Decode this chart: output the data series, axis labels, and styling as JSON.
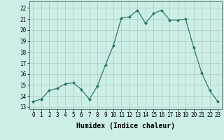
{
  "x": [
    0,
    1,
    2,
    3,
    4,
    5,
    6,
    7,
    8,
    9,
    10,
    11,
    12,
    13,
    14,
    15,
    16,
    17,
    18,
    19,
    20,
    21,
    22,
    23
  ],
  "y": [
    13.5,
    13.7,
    14.5,
    14.7,
    15.1,
    15.2,
    14.6,
    13.7,
    14.9,
    16.8,
    18.6,
    21.1,
    21.2,
    21.8,
    20.6,
    21.5,
    21.8,
    20.9,
    20.9,
    21.0,
    18.4,
    16.1,
    14.5,
    13.5
  ],
  "line_color": "#2d7a68",
  "marker": "D",
  "markersize": 2.0,
  "linewidth": 0.9,
  "xlabel": "Humidex (Indice chaleur)",
  "xlim": [
    -0.5,
    23.5
  ],
  "ylim": [
    12.8,
    22.6
  ],
  "yticks": [
    13,
    14,
    15,
    16,
    17,
    18,
    19,
    20,
    21,
    22
  ],
  "xticks": [
    0,
    1,
    2,
    3,
    4,
    5,
    6,
    7,
    8,
    9,
    10,
    11,
    12,
    13,
    14,
    15,
    16,
    17,
    18,
    19,
    20,
    21,
    22,
    23
  ],
  "bg_color": "#cceee8",
  "grid_color": "#b0c8c4",
  "tick_labelsize": 5.5,
  "xlabel_fontsize": 7.0
}
